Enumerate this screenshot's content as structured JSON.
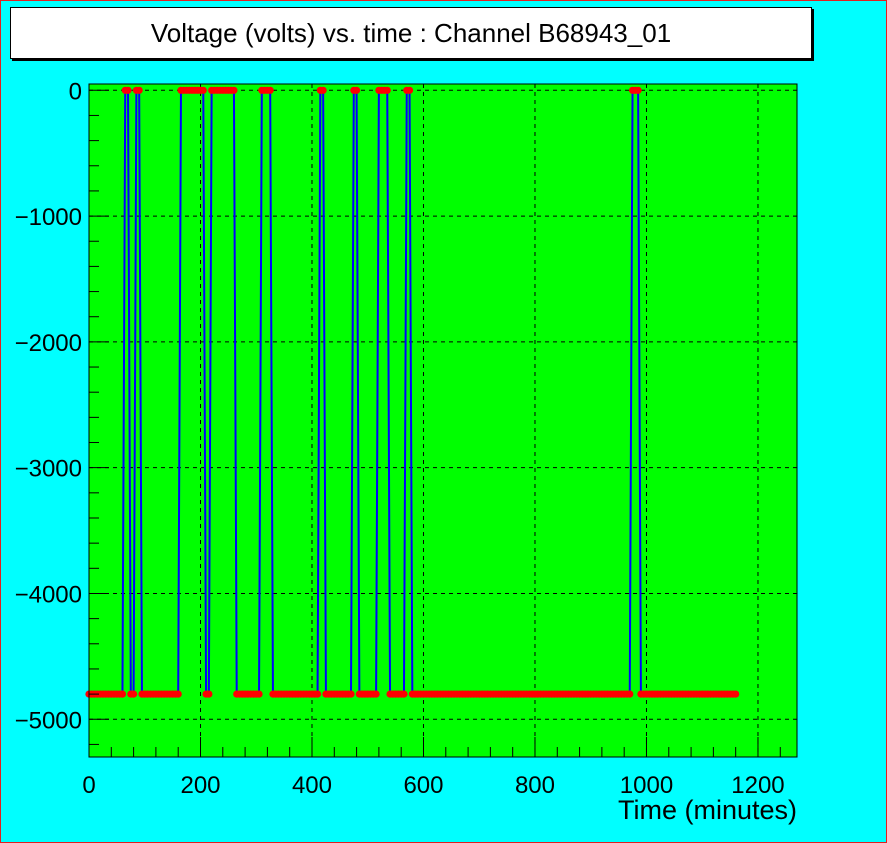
{
  "chart_data": {
    "type": "line",
    "title": "Voltage (volts) vs. time  : Channel B68943_01",
    "xlabel": "Time (minutes)",
    "ylabel": "",
    "xlim": [
      0,
      1270
    ],
    "ylim": [
      -5300,
      50
    ],
    "xticks": [
      0,
      200,
      400,
      600,
      800,
      1000,
      1200
    ],
    "yticks": [
      0,
      -1000,
      -2000,
      -3000,
      -4000,
      -5000
    ],
    "xtick_labels": [
      "0",
      "200",
      "400",
      "600",
      "800",
      "1000",
      "1200"
    ],
    "ytick_labels": [
      "0",
      "−1000",
      "−2000",
      "−3000",
      "−4000",
      "−5000"
    ],
    "grid": true,
    "colors": {
      "background": "#00ffff",
      "plot_area": "#00ff00",
      "line": "#0000ff",
      "markers": "#ff0000",
      "frame": "#e02020",
      "grid": "#000000"
    },
    "series": [
      {
        "low_level": -4800,
        "high_level": 0,
        "sample_interval": 5,
        "x_end": 1160,
        "high_intervals": [
          [
            62,
            70
          ],
          [
            85,
            90
          ],
          [
            165,
            205
          ],
          [
            218,
            260
          ],
          [
            310,
            325
          ],
          [
            412,
            420
          ],
          [
            475,
            480
          ],
          [
            520,
            535
          ],
          [
            570,
            575
          ],
          [
            975,
            985
          ]
        ]
      }
    ]
  }
}
